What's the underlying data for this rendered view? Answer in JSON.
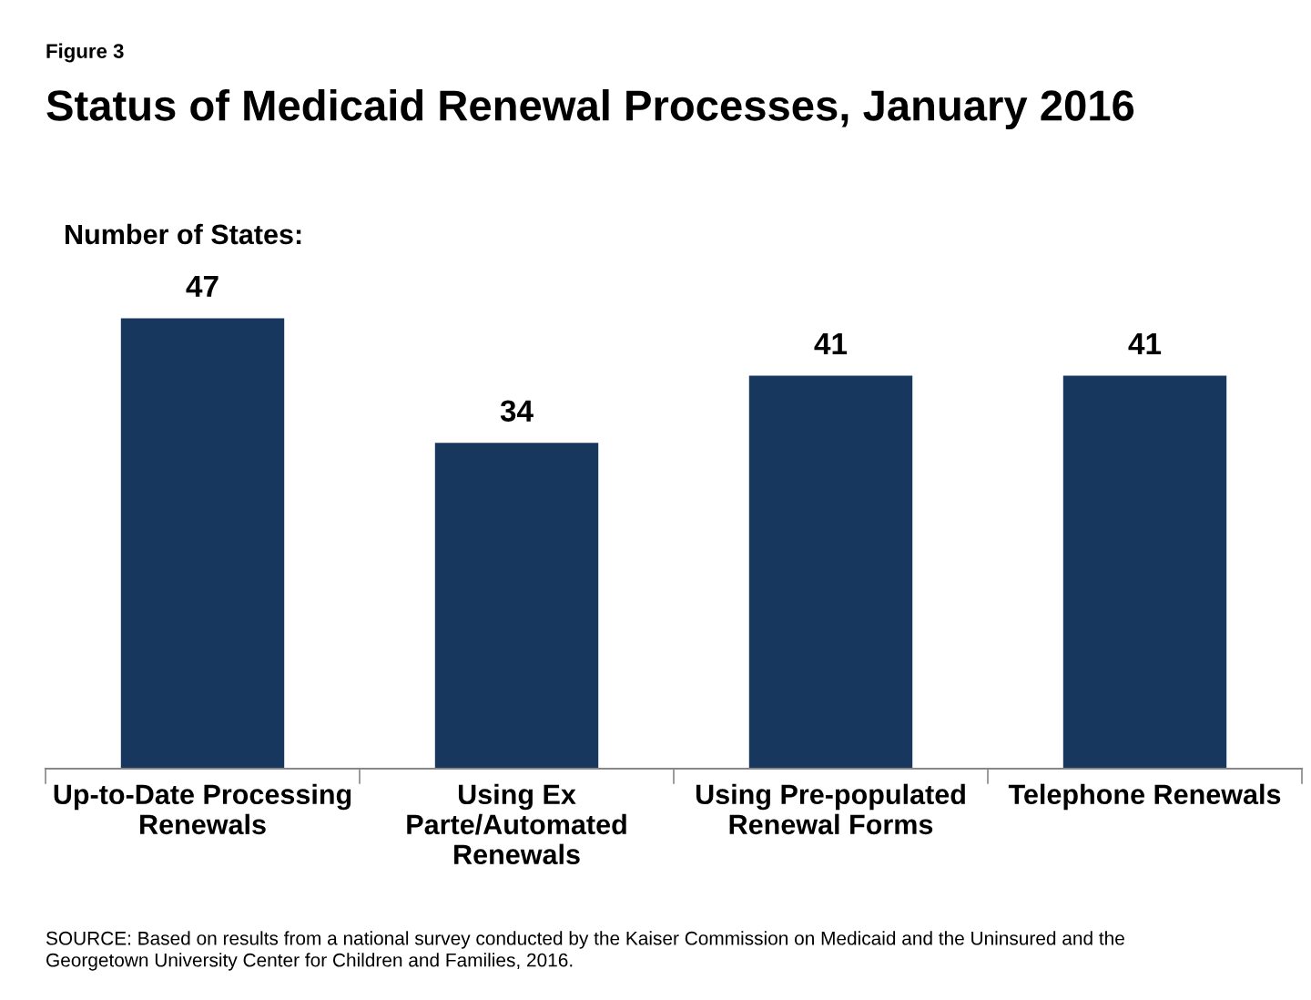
{
  "chart_data": {
    "type": "bar",
    "title": "Status of Medicaid Renewal Processes, January 2016",
    "ylabel": "Number of States:",
    "categories": [
      "Up-to-Date Processing\nRenewals",
      "Using Ex\nParte/Automated\nRenewals",
      "Using Pre-populated\nRenewal Forms",
      "Telephone Renewals"
    ],
    "values": [
      47,
      34,
      41,
      41
    ],
    "color": "#17375e",
    "data_labels": true,
    "grid": false,
    "legend": false,
    "tick_labels": "x",
    "annotations": [
      "Figure 3",
      "SOURCE: Based on results from a national survey conducted by the Kaiser Commission on Medicaid and the Uninsured and the\nGeorgetown University Center for Children and Families, 2016."
    ]
  }
}
